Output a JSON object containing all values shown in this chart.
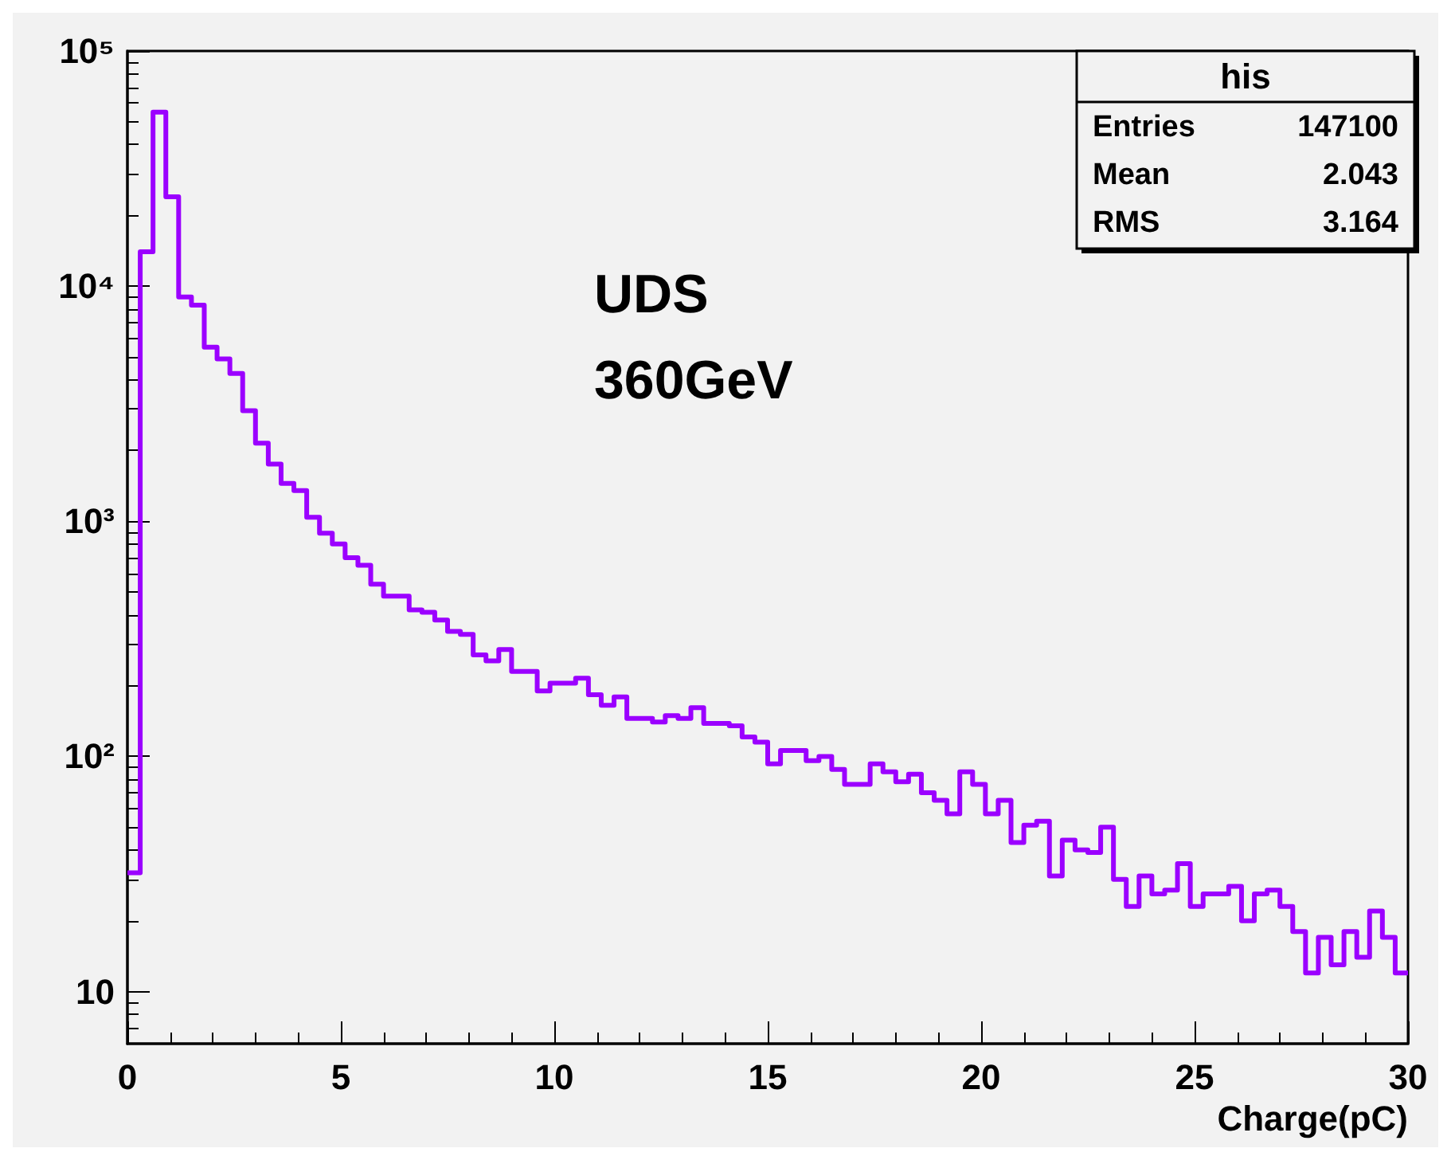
{
  "chart_data": {
    "type": "histogram",
    "xlabel": "Charge(pC)",
    "color": "#9b00ff",
    "bins": [
      0,
      0.3,
      0.6,
      0.9,
      1.2,
      1.5,
      1.8,
      2.1,
      2.4,
      2.7,
      3,
      3.3,
      3.6,
      3.9,
      4.2,
      4.5,
      4.8,
      5.1,
      5.4,
      5.7,
      6,
      6.3,
      6.6,
      6.9,
      7.2,
      7.5,
      7.8,
      8.1,
      8.4,
      8.7,
      9,
      9.3,
      9.6,
      9.9,
      10.2,
      10.5,
      10.8,
      11.1,
      11.4,
      11.7,
      12,
      12.3,
      12.6,
      12.9,
      13.2,
      13.5,
      13.8,
      14.1,
      14.4,
      14.7,
      15,
      15.3,
      15.6,
      15.9,
      16.2,
      16.5,
      16.8,
      17.1,
      17.4,
      17.7,
      18,
      18.3,
      18.6,
      18.9,
      19.2,
      19.5,
      19.8,
      20.1,
      20.4,
      20.7,
      21,
      21.3,
      21.6,
      21.9,
      22.2,
      22.5,
      22.8,
      23.1,
      23.4,
      23.7,
      24,
      24.3,
      24.6,
      24.9,
      25.2,
      25.5,
      25.8,
      26.1,
      26.4,
      26.7,
      27,
      27.3,
      27.6,
      27.9,
      28.2,
      28.5,
      28.8,
      29.1,
      29.4,
      29.7,
      30
    ],
    "values": [
      32,
      14000,
      55000,
      24000,
      9000,
      8300,
      5500,
      4900,
      4250,
      2950,
      2150,
      1750,
      1450,
      1350,
      1040,
      890,
      800,
      700,
      650,
      540,
      480,
      480,
      420,
      410,
      380,
      340,
      330,
      270,
      255,
      285,
      230,
      230,
      190,
      205,
      205,
      215,
      183,
      165,
      179,
      145,
      145,
      140,
      149,
      145,
      161,
      138,
      138,
      135,
      121,
      115,
      93,
      106,
      106,
      96,
      100,
      88,
      76,
      76,
      93,
      86,
      78,
      84,
      70,
      65,
      57,
      86,
      76,
      57,
      65,
      43,
      51,
      53,
      31,
      44,
      40,
      39,
      50,
      30,
      23,
      31,
      26,
      27,
      35,
      23,
      26,
      26,
      28,
      20,
      26,
      27,
      23,
      18,
      12,
      17,
      13,
      18,
      14,
      22,
      17,
      12
    ],
    "xlim": [
      0,
      30
    ],
    "xticks": [
      0,
      5,
      10,
      15,
      20,
      25,
      30
    ],
    "ylim": [
      6,
      100000
    ],
    "log": true,
    "yticks": [
      10,
      {
        "value": 100,
        "label": "10²"
      },
      {
        "value": 1000,
        "label": "10³"
      },
      {
        "value": 10000,
        "label": "10⁴"
      },
      {
        "value": 100000,
        "label": "10⁵"
      }
    ],
    "grid": false,
    "annotations": [
      "UDS",
      "360GeV",
      "his",
      "Entries 147100",
      "Mean 2.043",
      "RMS 3.164"
    ]
  }
}
